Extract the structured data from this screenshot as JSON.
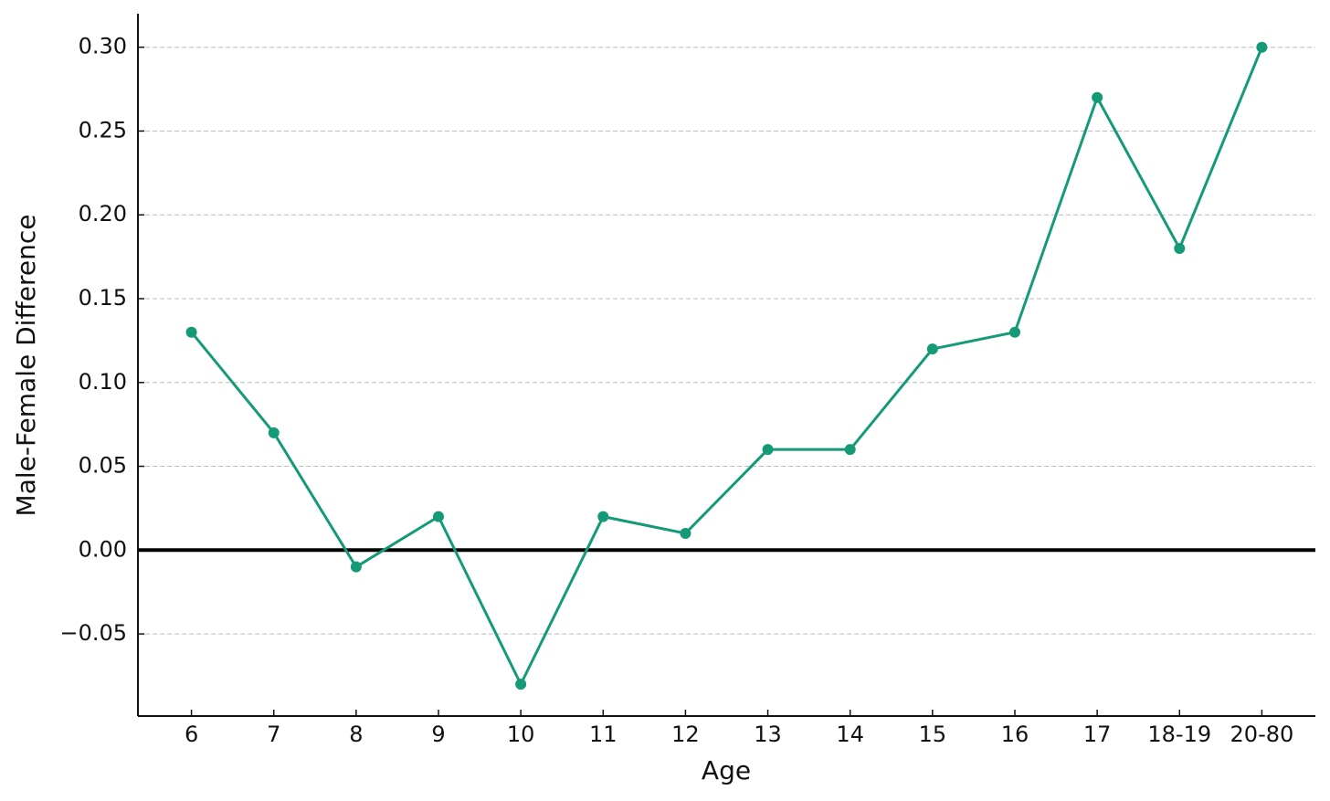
{
  "chart_data": {
    "type": "line",
    "xlabel": "Age",
    "ylabel": "Male-Female Difference",
    "categories": [
      "6",
      "7",
      "8",
      "9",
      "10",
      "11",
      "12",
      "13",
      "14",
      "15",
      "16",
      "17",
      "18-19",
      "20-80"
    ],
    "series": [
      {
        "color": "#159a78",
        "values": [
          0.13,
          0.07,
          -0.01,
          0.02,
          -0.08,
          0.02,
          0.01,
          0.06,
          0.06,
          0.12,
          0.13,
          0.27,
          0.18,
          0.3
        ]
      }
    ],
    "ylim": [
      -0.099,
      0.32
    ],
    "yticks": [
      {
        "value": -0.05,
        "label": "−0.05"
      },
      {
        "value": 0,
        "label": "0.00"
      },
      {
        "value": 0.05,
        "label": "0.05"
      },
      {
        "value": 0.1,
        "label": "0.10"
      },
      {
        "value": 0.15,
        "label": "0.15"
      },
      {
        "value": 0.2,
        "label": "0.20"
      },
      {
        "value": 0.25,
        "label": "0.25"
      },
      {
        "value": 0.3,
        "label": "0.30"
      }
    ],
    "grid": true,
    "axhline": 0
  }
}
